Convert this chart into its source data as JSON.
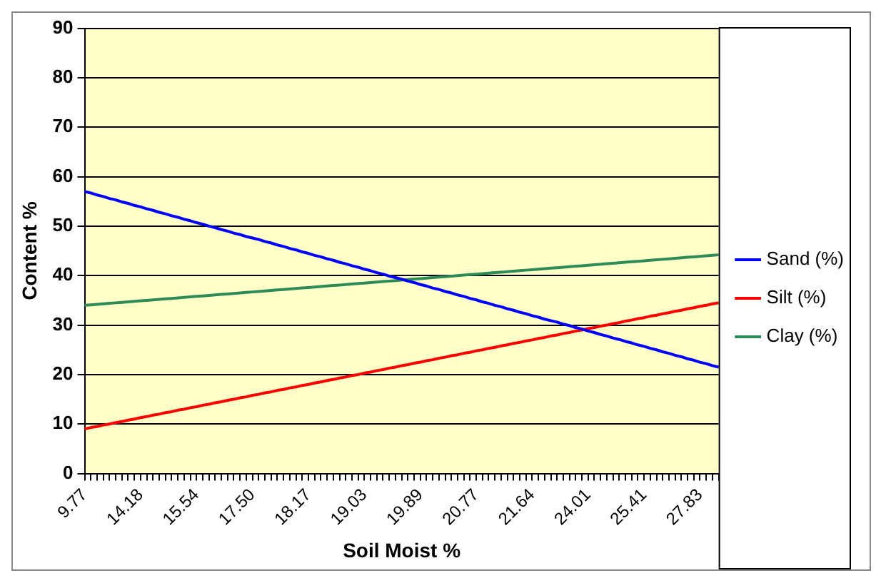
{
  "chart_data": {
    "type": "line",
    "xlabel": "Soil Moist %",
    "ylabel": "Content %",
    "categories": [
      "9.77",
      null,
      null,
      null,
      null,
      null,
      null,
      null,
      null,
      "14.18",
      null,
      null,
      null,
      null,
      null,
      null,
      null,
      null,
      "15.54",
      null,
      null,
      null,
      null,
      null,
      null,
      null,
      null,
      "17.50",
      null,
      null,
      null,
      null,
      null,
      null,
      null,
      null,
      "18.17",
      null,
      null,
      null,
      null,
      null,
      null,
      null,
      null,
      "19.03",
      null,
      null,
      null,
      null,
      null,
      null,
      null,
      null,
      "19.89",
      null,
      null,
      null,
      null,
      null,
      null,
      null,
      null,
      "20.77",
      null,
      null,
      null,
      null,
      null,
      null,
      null,
      null,
      "21.64",
      null,
      null,
      null,
      null,
      null,
      null,
      null,
      null,
      "24.01",
      null,
      null,
      null,
      null,
      null,
      null,
      null,
      null,
      "25.41",
      null,
      null,
      null,
      null,
      null,
      null,
      null,
      null,
      "27.83",
      null,
      null,
      null
    ],
    "series": [
      {
        "name": "Sand (%)",
        "color": "#0000ff",
        "values": [
          57.0,
          56.7,
          56.3,
          56.0,
          55.6,
          55.3,
          54.9,
          54.6,
          54.2,
          53.9,
          53.5,
          53.2,
          52.8,
          52.5,
          52.1,
          51.8,
          51.4,
          51.1,
          50.7,
          50.4,
          50.0,
          49.7,
          49.3,
          49.0,
          48.6,
          48.3,
          47.9,
          47.6,
          47.3,
          46.9,
          46.6,
          46.2,
          45.9,
          45.5,
          45.2,
          44.8,
          44.5,
          44.1,
          43.8,
          43.4,
          43.1,
          42.7,
          42.4,
          42.0,
          41.7,
          41.3,
          41.0,
          40.6,
          40.3,
          39.9,
          39.6,
          39.3,
          38.9,
          38.6,
          38.2,
          37.9,
          37.5,
          37.2,
          36.8,
          36.5,
          36.1,
          35.8,
          35.4,
          35.1,
          34.7,
          34.4,
          34.0,
          33.7,
          33.3,
          33.0,
          32.6,
          32.3,
          31.9,
          31.6,
          31.2,
          30.9,
          30.6,
          30.2,
          29.9,
          29.5,
          29.2,
          28.8,
          28.5,
          28.1,
          27.8,
          27.4,
          27.1,
          26.7,
          26.4,
          26.0,
          25.7,
          25.3,
          25.0,
          24.6,
          24.3,
          23.9,
          23.6,
          23.2,
          22.9,
          22.5,
          22.2,
          21.8,
          21.5
        ]
      },
      {
        "name": "Silt (%)",
        "color": "#ff0000",
        "values": [
          9.0,
          9.3,
          9.5,
          9.8,
          10.0,
          10.3,
          10.5,
          10.8,
          11.0,
          11.3,
          11.5,
          11.8,
          12.0,
          12.3,
          12.5,
          12.8,
          13.0,
          13.3,
          13.5,
          13.8,
          14.0,
          14.3,
          14.5,
          14.8,
          15.0,
          15.3,
          15.5,
          15.8,
          16.0,
          16.3,
          16.5,
          16.8,
          17.0,
          17.3,
          17.5,
          17.8,
          18.0,
          18.3,
          18.5,
          18.8,
          19.0,
          19.3,
          19.5,
          19.8,
          20.0,
          20.3,
          20.5,
          20.8,
          21.0,
          21.3,
          21.5,
          21.8,
          22.0,
          22.3,
          22.5,
          22.8,
          23.0,
          23.3,
          23.5,
          23.8,
          24.0,
          24.3,
          24.5,
          24.8,
          25.0,
          25.3,
          25.5,
          25.8,
          26.0,
          26.3,
          26.5,
          26.8,
          27.0,
          27.3,
          27.5,
          27.8,
          28.0,
          28.3,
          28.5,
          28.8,
          29.0,
          29.3,
          29.5,
          29.8,
          30.0,
          30.3,
          30.5,
          30.8,
          31.0,
          31.3,
          31.5,
          31.8,
          32.0,
          32.3,
          32.5,
          32.8,
          33.0,
          33.3,
          33.5,
          33.8,
          34.0,
          34.3,
          34.5
        ]
      },
      {
        "name": "Clay (%)",
        "color": "#2e8b57",
        "values": [
          34.0,
          34.1,
          34.2,
          34.3,
          34.4,
          34.5,
          34.6,
          34.7,
          34.8,
          34.9,
          35.0,
          35.1,
          35.2,
          35.3,
          35.4,
          35.5,
          35.6,
          35.7,
          35.8,
          35.9,
          36.0,
          36.1,
          36.2,
          36.3,
          36.4,
          36.5,
          36.6,
          36.7,
          36.8,
          36.9,
          37.0,
          37.1,
          37.2,
          37.3,
          37.4,
          37.5,
          37.6,
          37.7,
          37.8,
          37.9,
          38.0,
          38.1,
          38.2,
          38.3,
          38.4,
          38.5,
          38.6,
          38.7,
          38.8,
          38.9,
          39.0,
          39.1,
          39.2,
          39.3,
          39.4,
          39.5,
          39.6,
          39.7,
          39.8,
          39.9,
          40.0,
          40.1,
          40.2,
          40.3,
          40.4,
          40.5,
          40.6,
          40.7,
          40.8,
          40.9,
          41.0,
          41.1,
          41.2,
          41.3,
          41.4,
          41.5,
          41.6,
          41.7,
          41.8,
          41.9,
          42.0,
          42.1,
          42.2,
          42.3,
          42.4,
          42.5,
          42.6,
          42.7,
          42.8,
          42.9,
          43.0,
          43.1,
          43.2,
          43.3,
          43.4,
          43.5,
          43.6,
          43.7,
          43.8,
          43.9,
          44.0,
          44.1,
          44.2
        ]
      }
    ],
    "ylim": [
      0,
      90
    ],
    "yticks": [
      0,
      10,
      20,
      30,
      40,
      50,
      60,
      70,
      80,
      90
    ],
    "grid": "y",
    "legend": "right",
    "marker": "none",
    "line_style": "solid"
  }
}
